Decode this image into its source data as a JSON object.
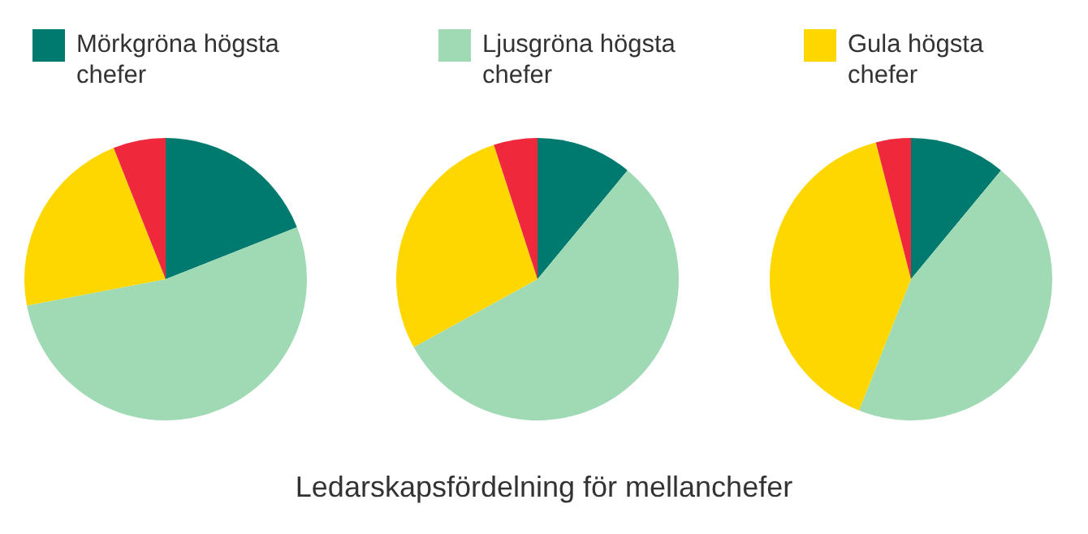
{
  "chart_data": [
    {
      "type": "pie",
      "categories": [
        "Mörkgröna högsta chefer",
        null,
        null,
        null
      ],
      "values": [
        19,
        53,
        22,
        6
      ],
      "colors": [
        "#007a6e",
        "#a0dab4",
        "#ffd700",
        "#f0283c"
      ],
      "legend": "top"
    },
    {
      "type": "pie",
      "categories": [
        null,
        "Ljusgröna högsta chefer",
        null,
        null
      ],
      "values": [
        11,
        56,
        28,
        5
      ],
      "colors": [
        "#007a6e",
        "#a0dab4",
        "#ffd700",
        "#f0283c"
      ],
      "legend": "top"
    },
    {
      "type": "pie",
      "categories": [
        null,
        null,
        "Gula högsta chefer",
        null
      ],
      "values": [
        11,
        45,
        40,
        4
      ],
      "colors": [
        "#007a6e",
        "#a0dab4",
        "#ffd700",
        "#f0283c"
      ],
      "legend": "top"
    },
    {
      "type": "other",
      "title": "Ledarskapsfördelning för mellanchefer"
    }
  ]
}
